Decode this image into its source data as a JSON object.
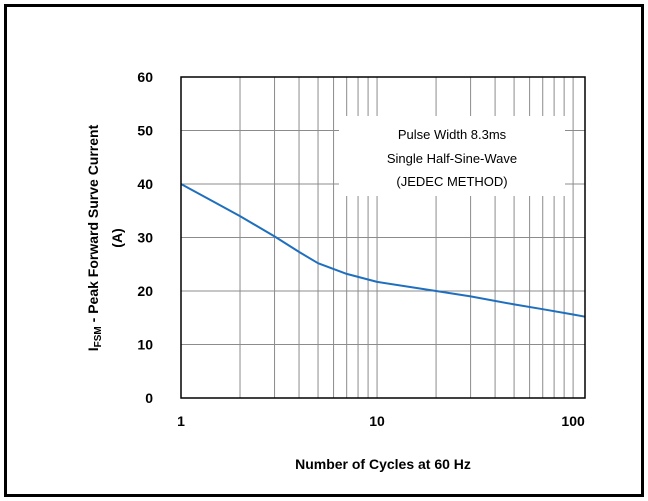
{
  "chart_data": {
    "type": "line",
    "xscale": "log",
    "xlim": [
      1,
      115
    ],
    "ylim": [
      0,
      60
    ],
    "grid": true,
    "xticks": [
      {
        "value": 1,
        "label": "1"
      },
      {
        "value": 10,
        "label": "10"
      },
      {
        "value": 100,
        "label": "100"
      }
    ],
    "yticks": [
      {
        "value": 0,
        "label": "0"
      },
      {
        "value": 10,
        "label": "10"
      },
      {
        "value": 20,
        "label": "20"
      },
      {
        "value": 30,
        "label": "30"
      },
      {
        "value": 40,
        "label": "40"
      },
      {
        "value": 50,
        "label": "50"
      },
      {
        "value": 60,
        "label": "60"
      }
    ],
    "xlabel": "Number of Cycles at 60 Hz",
    "ylabel": {
      "prefix": "I",
      "subscript": "FSM",
      "line1_rest": " - Peak Forward Surve Current",
      "line2": "(A)"
    },
    "annotation": [
      "Pulse Width 8.3ms",
      "Single Half-Sine-Wave",
      "(JEDEC METHOD)"
    ],
    "series_color": "#1f6fbf",
    "series": [
      {
        "x": [
          1,
          1.5,
          2,
          3,
          4,
          5,
          7,
          10,
          20,
          30,
          50,
          70,
          100,
          115
        ],
        "y": [
          40,
          36.5,
          34,
          30.2,
          27.3,
          25.2,
          23.2,
          21.7,
          20.0,
          19.0,
          17.5,
          16.6,
          15.6,
          15.2
        ]
      }
    ]
  }
}
